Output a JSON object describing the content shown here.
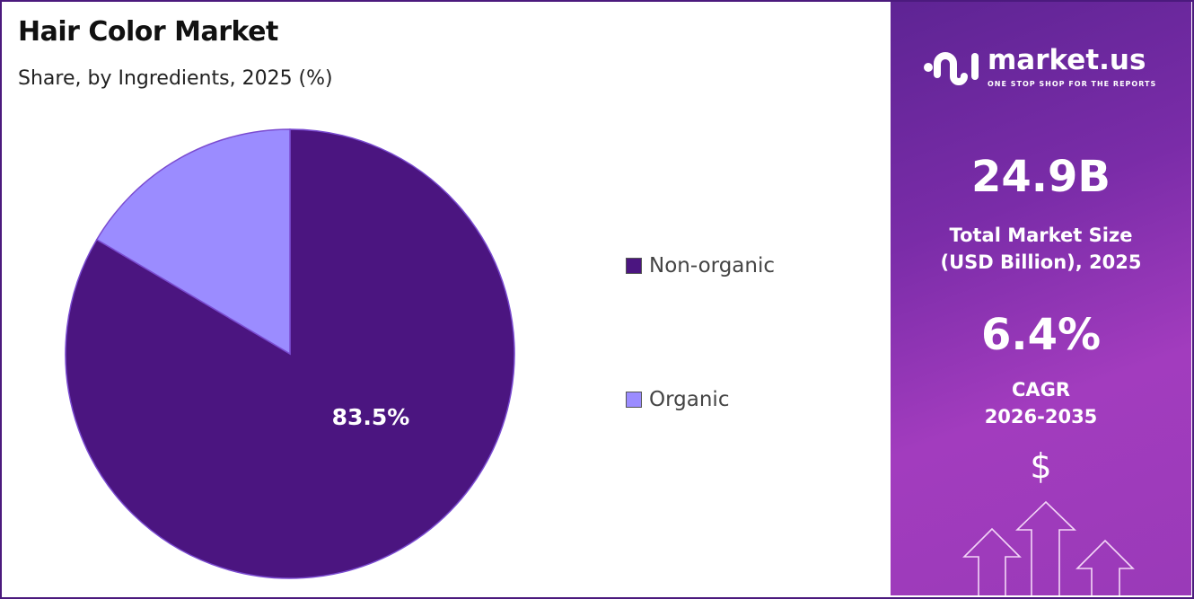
{
  "header": {
    "title": "Hair Color Market",
    "subtitle": "Share, by Ingredients, 2025 (%)"
  },
  "chart_data": {
    "type": "pie",
    "title": "Hair Color Market",
    "subtitle": "Share, by Ingredients, 2025 (%)",
    "categories": [
      "Non-organic",
      "Organic"
    ],
    "values": [
      83.5,
      16.5
    ],
    "colors": [
      "#4b1580",
      "#9b8cff"
    ],
    "data_labels": [
      "83.5%",
      ""
    ],
    "legend_placement": "right"
  },
  "panel": {
    "logo_name": "market.us",
    "logo_tagline": "ONE STOP SHOP FOR THE REPORTS",
    "market_size": "24.9B",
    "market_size_label_1": "Total Market Size",
    "market_size_label_2": "(USD Billion), 2025",
    "cagr": "6.4%",
    "cagr_label_1": "CAGR",
    "cagr_label_2": "2026-2035",
    "dollar_symbol": "$",
    "icons": [
      "dollar-icon",
      "up-arrow-icon"
    ]
  }
}
